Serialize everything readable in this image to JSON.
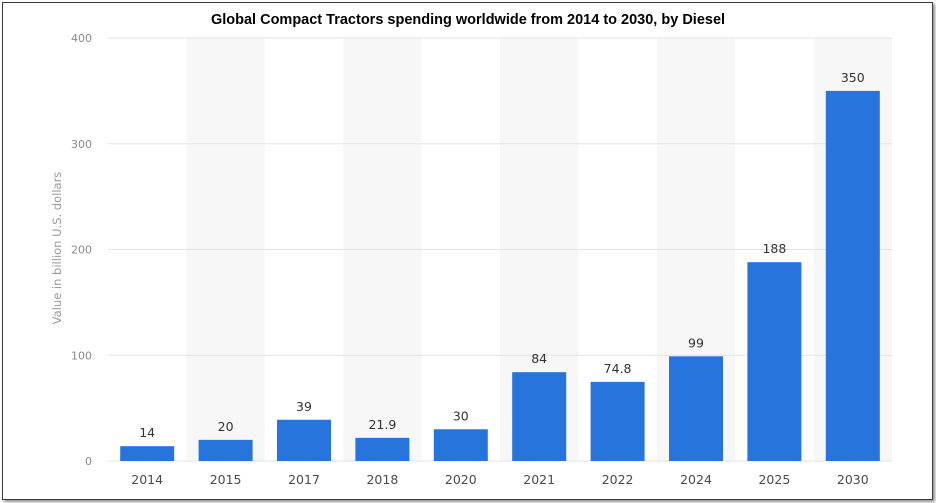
{
  "chart_data": {
    "type": "bar",
    "title": "Global Compact Tractors spending worldwide from 2014 to 2030, by Diesel",
    "xlabel": "",
    "ylabel": "Value in billion U.S. dollars",
    "categories": [
      "2014",
      "2015",
      "2017",
      "2018",
      "2020",
      "2021",
      "2022",
      "2024",
      "2025",
      "2030"
    ],
    "values": [
      14,
      20,
      39,
      21.9,
      30,
      84,
      74.8,
      99,
      188,
      350
    ],
    "value_labels": [
      "14",
      "20",
      "39",
      "21.9",
      "30",
      "84",
      "74.8",
      "99",
      "188",
      "350"
    ],
    "ylim": [
      0,
      400
    ],
    "yticks": [
      0,
      100,
      200,
      300,
      400
    ],
    "grid": true,
    "bar_color": "#2874dd",
    "alt_band_color": "#f7f7f7"
  }
}
